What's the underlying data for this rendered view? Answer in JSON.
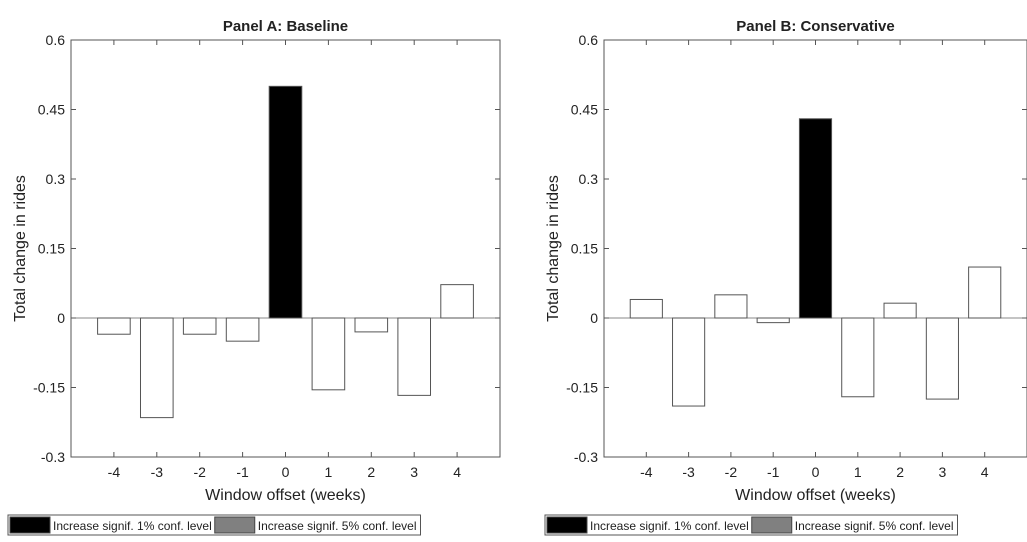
{
  "chart_data": [
    {
      "type": "bar",
      "title": "Panel A: Baseline",
      "xlabel": "Window offset (weeks)",
      "ylabel": "Total change in rides",
      "categories": [
        "-4",
        "-3",
        "-2",
        "-1",
        "0",
        "1",
        "2",
        "3",
        "4"
      ],
      "values": [
        -0.035,
        -0.215,
        -0.035,
        -0.05,
        0.5,
        -0.155,
        -0.03,
        -0.167,
        0.072
      ],
      "bar_status": [
        "none",
        "none",
        "none",
        "none",
        "1pct",
        "none",
        "none",
        "none",
        "none"
      ],
      "ylim": [
        -0.3,
        0.6
      ],
      "yticks": [
        "-0.3",
        "-0.15",
        "0",
        "0.15",
        "0.3",
        "0.45",
        "0.6"
      ],
      "ytick_values": [
        -0.3,
        -0.15,
        0,
        0.15,
        0.3,
        0.45,
        0.6
      ],
      "grid": false,
      "legend": [
        {
          "label": "Increase signif. 1% conf. level",
          "color": "#000000"
        },
        {
          "label": "Increase signif. 5% conf. level",
          "color": "#808080"
        }
      ]
    },
    {
      "type": "bar",
      "title": "Panel B: Conservative",
      "xlabel": "Window offset (weeks)",
      "ylabel": "Total change in rides",
      "categories": [
        "-4",
        "-3",
        "-2",
        "-1",
        "0",
        "1",
        "2",
        "3",
        "4"
      ],
      "values": [
        0.04,
        -0.19,
        0.05,
        -0.01,
        0.43,
        -0.17,
        0.032,
        -0.175,
        0.11
      ],
      "bar_status": [
        "none",
        "none",
        "none",
        "none",
        "1pct",
        "none",
        "none",
        "none",
        "none"
      ],
      "ylim": [
        -0.3,
        0.6
      ],
      "yticks": [
        "-0.3",
        "-0.15",
        "0",
        "0.15",
        "0.3",
        "0.45",
        "0.6"
      ],
      "ytick_values": [
        -0.3,
        -0.15,
        0,
        0.15,
        0.3,
        0.45,
        0.6
      ],
      "grid": false,
      "legend": [
        {
          "label": "Increase signif. 1% conf. level",
          "color": "#000000"
        },
        {
          "label": "Increase signif. 5% conf. level",
          "color": "#808080"
        }
      ]
    }
  ],
  "colors": {
    "bar_1pct": "#000000",
    "bar_5pct": "#808080",
    "bar_none": "#ffffff",
    "stroke": "#555555"
  }
}
